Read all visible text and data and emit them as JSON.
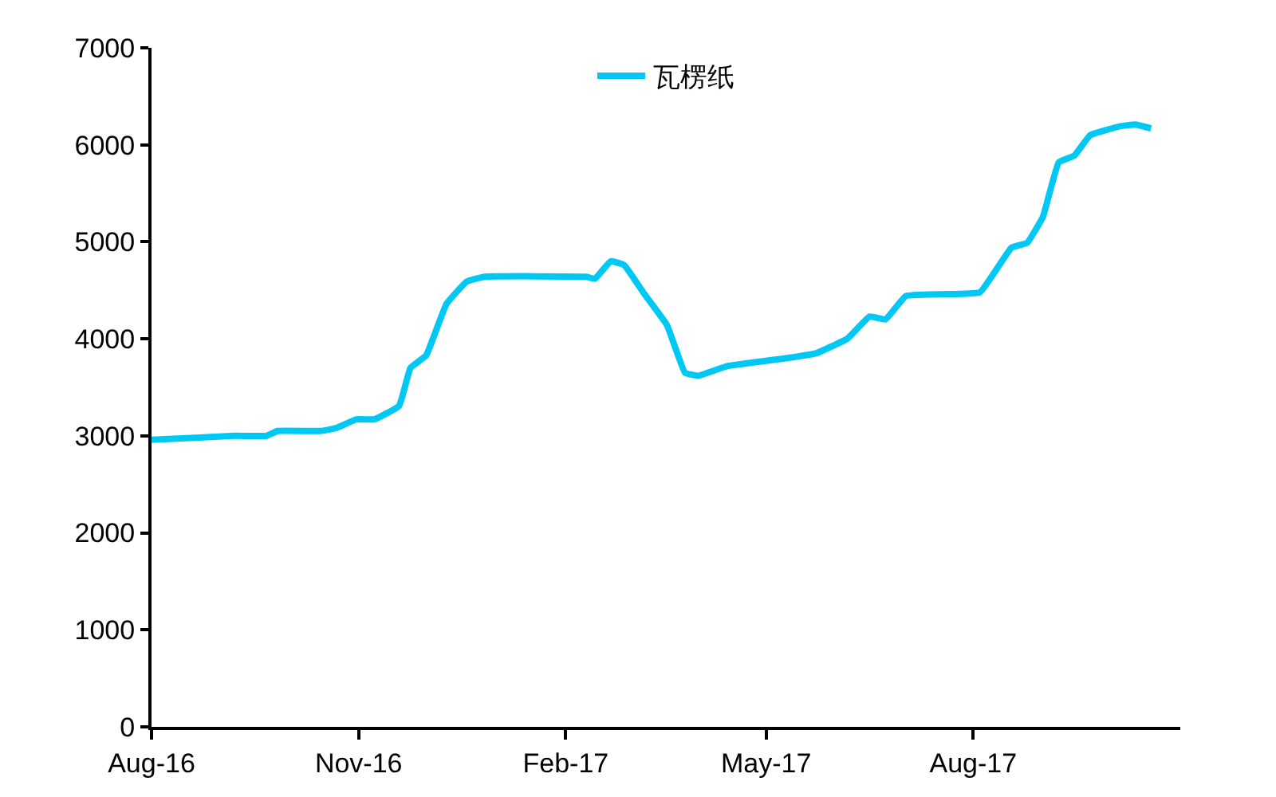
{
  "chart_data": {
    "type": "line",
    "x": [
      "2016-08-01",
      "2016-09-07",
      "2016-09-21",
      "2016-09-26",
      "2016-10-15",
      "2016-10-22",
      "2016-10-31",
      "2016-11-08",
      "2016-11-19",
      "2016-11-24",
      "2016-12-01",
      "2016-12-10",
      "2016-12-19",
      "2016-12-27",
      "2017-02-10",
      "2017-02-14",
      "2017-02-21",
      "2017-02-27",
      "2017-03-08",
      "2017-03-18",
      "2017-03-26",
      "2017-04-01",
      "2017-04-14",
      "2017-05-13",
      "2017-05-23",
      "2017-06-06",
      "2017-06-16",
      "2017-06-23",
      "2017-07-02",
      "2017-07-18",
      "2017-08-04",
      "2017-08-18",
      "2017-08-25",
      "2017-09-01",
      "2017-09-08",
      "2017-09-15",
      "2017-09-22",
      "2017-10-05",
      "2017-10-12",
      "2017-10-19"
    ],
    "series": [
      {
        "name": "瓦楞纸",
        "color": "#00c8f5",
        "values": [
          2960,
          3000,
          3000,
          3050,
          3050,
          3080,
          3170,
          3170,
          3310,
          3700,
          3830,
          4360,
          4590,
          4640,
          4640,
          4620,
          4800,
          4760,
          4460,
          4140,
          3650,
          3620,
          3720,
          3810,
          3850,
          4000,
          4230,
          4200,
          4440,
          4460,
          4480,
          4940,
          4990,
          5260,
          5820,
          5890,
          6100,
          6190,
          6210,
          6170
        ]
      }
    ],
    "xlim": [
      "2016-08-01",
      "2017-11-01"
    ],
    "xticks": [
      {
        "value": "2016-08-01",
        "label": "Aug-16"
      },
      {
        "value": "2016-11-01",
        "label": "Nov-16"
      },
      {
        "value": "2017-02-01",
        "label": "Feb-17"
      },
      {
        "value": "2017-05-01",
        "label": "May-17"
      },
      {
        "value": "2017-08-01",
        "label": "Aug-17"
      }
    ],
    "ylim": [
      0,
      7000
    ],
    "yticks": [
      0,
      1000,
      2000,
      3000,
      4000,
      5000,
      6000,
      7000
    ],
    "legend": "top",
    "marker": "none",
    "line_style": "solid"
  }
}
